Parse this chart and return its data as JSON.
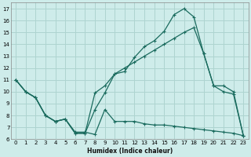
{
  "xlabel": "Humidex (Indice chaleur)",
  "bg_color": "#ceecea",
  "grid_color": "#aed4d0",
  "line_color": "#1a6b5e",
  "line1_x": [
    0,
    1,
    2,
    3,
    4,
    5,
    6,
    7,
    8,
    9,
    10,
    11,
    12,
    13,
    14,
    15,
    16,
    17,
    18,
    19,
    20,
    21,
    22,
    23
  ],
  "line1_y": [
    11,
    10,
    9.5,
    8.0,
    7.5,
    7.7,
    6.5,
    6.5,
    8.5,
    9.9,
    11.5,
    11.7,
    12.9,
    13.8,
    14.3,
    15.1,
    16.5,
    17.0,
    16.3,
    13.2,
    10.5,
    10.5,
    10.0,
    6.3
  ],
  "line2_x": [
    0,
    1,
    2,
    3,
    4,
    5,
    6,
    7,
    8,
    9,
    10,
    11,
    12,
    13,
    14,
    15,
    16,
    17,
    18,
    19,
    20,
    21,
    22,
    23
  ],
  "line2_y": [
    11,
    10,
    9.5,
    8.0,
    7.5,
    7.7,
    6.5,
    6.5,
    9.9,
    10.5,
    11.5,
    12.0,
    12.5,
    13.0,
    13.5,
    14.0,
    14.5,
    15.0,
    15.4,
    13.2,
    10.5,
    10.0,
    9.8,
    6.3
  ],
  "line3_x": [
    0,
    1,
    2,
    3,
    4,
    5,
    6,
    7,
    8,
    9,
    10,
    11,
    12,
    13,
    14,
    15,
    16,
    17,
    18,
    19,
    20,
    21,
    22,
    23
  ],
  "line3_y": [
    11,
    10,
    9.5,
    8.0,
    7.5,
    7.7,
    6.6,
    6.6,
    6.4,
    8.5,
    7.5,
    7.5,
    7.5,
    7.3,
    7.2,
    7.2,
    7.1,
    7.0,
    6.9,
    6.8,
    6.7,
    6.6,
    6.5,
    6.3
  ],
  "xlim": [
    -0.5,
    23.5
  ],
  "ylim": [
    6,
    17.5
  ],
  "yticks": [
    6,
    7,
    8,
    9,
    10,
    11,
    12,
    13,
    14,
    15,
    16,
    17
  ],
  "xticks": [
    0,
    1,
    2,
    3,
    4,
    5,
    6,
    7,
    8,
    9,
    10,
    11,
    12,
    13,
    14,
    15,
    16,
    17,
    18,
    19,
    20,
    21,
    22,
    23
  ]
}
